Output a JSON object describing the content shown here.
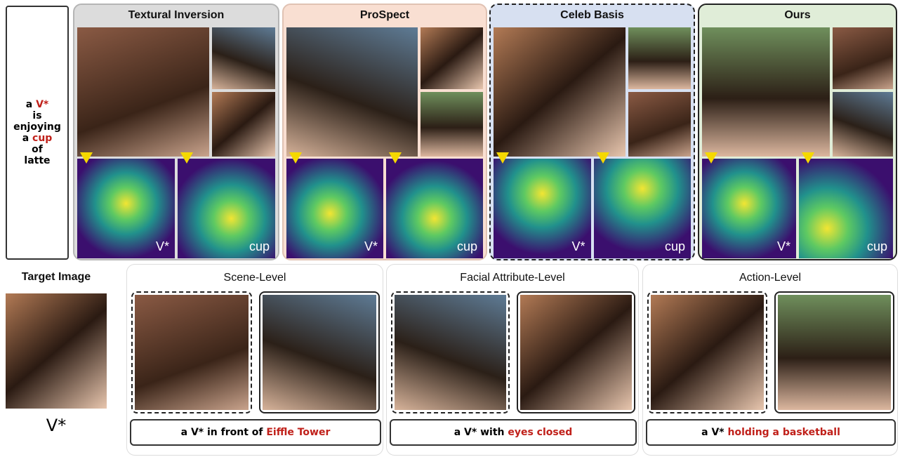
{
  "prompt": {
    "lines": [
      [
        {
          "text": "a"
        },
        {
          "text": "V*",
          "color": "#c0201a"
        }
      ],
      [
        {
          "text": "is"
        }
      ],
      [
        {
          "text": "enjoying"
        }
      ],
      [
        {
          "text": "a"
        },
        {
          "text": "cup",
          "color": "#c0201a"
        }
      ],
      [
        {
          "text": "of"
        }
      ],
      [
        {
          "text": "latte"
        }
      ]
    ]
  },
  "panels": [
    {
      "title": "Textural Inversion",
      "background": "#dcdcdc",
      "border_style": "solid",
      "border_color": "#b5b5b5",
      "heatmap_labels": [
        "V*",
        "cup"
      ]
    },
    {
      "title": "ProSpect",
      "background": "#f9dfd2",
      "border_style": "solid",
      "border_color": "#e0c2b3",
      "heatmap_labels": [
        "V*",
        "cup"
      ]
    },
    {
      "title": "Celeb Basis",
      "background": "#d7e0f1",
      "border_style": "dashed",
      "border_color": "#222222",
      "heatmap_labels": [
        "V*",
        "cup"
      ]
    },
    {
      "title": "Ours",
      "background": "#e0edd8",
      "border_style": "solid",
      "border_color": "#222222",
      "heatmap_labels": [
        "V*",
        "cup"
      ]
    }
  ],
  "target": {
    "title": "Target Image",
    "label": "V*"
  },
  "groups": [
    {
      "title": "Scene-Level",
      "caption": [
        {
          "text": "a V* in front of "
        },
        {
          "text": "Eiffle Tower",
          "color": "#c0201a"
        }
      ]
    },
    {
      "title": "Facial Attribute-Level",
      "caption": [
        {
          "text": "a V* with "
        },
        {
          "text": "eyes closed",
          "color": "#c0201a"
        }
      ]
    },
    {
      "title": "Action-Level",
      "caption": [
        {
          "text": "a V* "
        },
        {
          "text": "holding a basketball",
          "color": "#c0201a"
        }
      ]
    }
  ]
}
